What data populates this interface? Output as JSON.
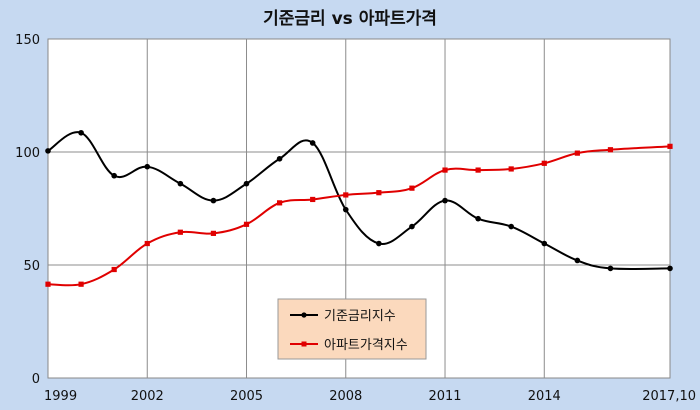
{
  "chart_data": {
    "type": "line",
    "title": "기준금리 vs 아파트가격",
    "xlabel": "",
    "ylabel": "",
    "ylim": [
      0,
      150
    ],
    "yticks": [
      0,
      50,
      100,
      150
    ],
    "xlim": [
      1999,
      2017.8
    ],
    "xticks": [
      1999,
      2002,
      2005,
      2008,
      2011,
      2014
    ],
    "xtick_labels": [
      "1999",
      "2002",
      "2005",
      "2008",
      "2011",
      "2014"
    ],
    "last_xtick_label": "2017,10",
    "grid": true,
    "legend_position": "bottom-center",
    "series": [
      {
        "name": "기준금리지수",
        "color": "#000000",
        "marker": "circle",
        "x": [
          1999,
          2000,
          2001,
          2002,
          2003,
          2004,
          2005,
          2006,
          2007,
          2008,
          2009,
          2010,
          2011,
          2012,
          2013,
          2014,
          2015,
          2016,
          2017.8
        ],
        "y": [
          100.5,
          108.5,
          89.5,
          93.5,
          86,
          78.5,
          86,
          97,
          104,
          74.5,
          59.5,
          67,
          78.5,
          70.5,
          67,
          59.5,
          52,
          48.5,
          48.5
        ]
      },
      {
        "name": "아파트가격지수",
        "color": "#e00000",
        "marker": "square",
        "x": [
          1999,
          2000,
          2001,
          2002,
          2003,
          2004,
          2005,
          2006,
          2007,
          2008,
          2009,
          2010,
          2011,
          2012,
          2013,
          2014,
          2015,
          2016,
          2017.8
        ],
        "y": [
          41.5,
          41.5,
          48,
          59.5,
          64.5,
          64,
          68,
          77.5,
          79,
          81,
          82,
          84,
          92,
          92,
          92.5,
          95,
          99.5,
          101,
          102.5
        ]
      }
    ]
  }
}
